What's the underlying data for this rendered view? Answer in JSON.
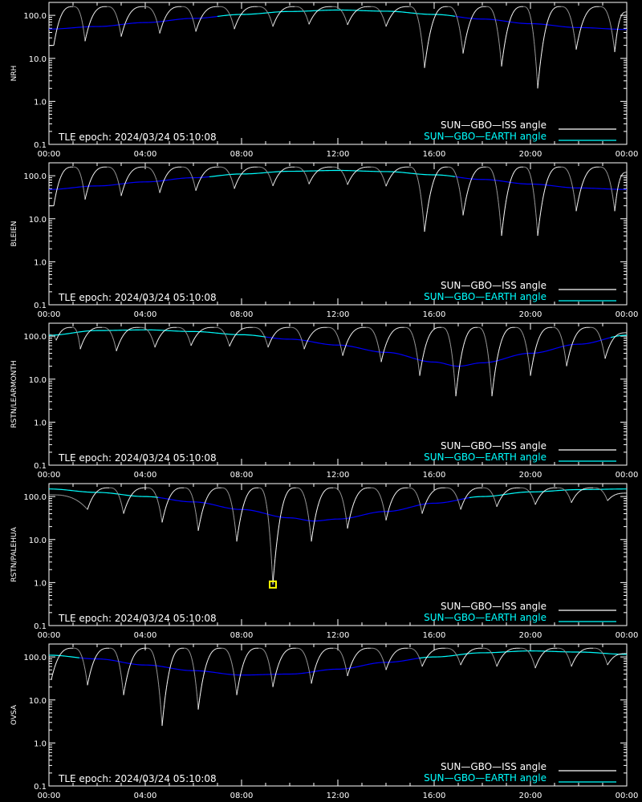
{
  "colors": {
    "background": "#000000",
    "axes": "#ffffff",
    "iss": "#ffffff",
    "earth_above": "#00ffff",
    "earth_below": "#0000ff",
    "marker": "#ffff00"
  },
  "legend": {
    "iss": "SUN—GBO—ISS angle",
    "earth": "SUN—GBO—EARTH angle"
  },
  "epoch": "TLE epoch: 2024/03/24 05:10:08",
  "x_ticks": [
    "00:00",
    "04:00",
    "08:00",
    "12:00",
    "16:00",
    "20:00",
    "00:00"
  ],
  "y_ticks": [
    "0.1",
    "1.0",
    "10.0",
    "100.0"
  ],
  "chart_data": [
    {
      "type": "line",
      "ylabel": "NRH",
      "ylim": [
        0.1,
        200
      ],
      "yscale": "log",
      "xlim_hours": [
        0,
        24
      ],
      "x_ticks": [
        "00:00",
        "04:00",
        "08:00",
        "12:00",
        "16:00",
        "20:00",
        "00:00"
      ],
      "legend": [
        "SUN—GBO—ISS angle",
        "SUN—GBO—EARTH angle"
      ],
      "series": [
        {
          "name": "SUN—GBO—EARTH angle",
          "x": [
            0,
            2,
            4,
            6,
            8,
            10,
            12,
            14,
            16,
            18,
            20,
            22,
            24
          ],
          "y": [
            48,
            55,
            68,
            85,
            105,
            123,
            133,
            125,
            105,
            82,
            64,
            52,
            47
          ]
        },
        {
          "name": "SUN—GBO—ISS angle",
          "peak": 160,
          "minima": [
            {
              "t": 0.2,
              "v": 20
            },
            {
              "t": 1.5,
              "v": 25
            },
            {
              "t": 3.0,
              "v": 32
            },
            {
              "t": 4.6,
              "v": 38
            },
            {
              "t": 6.1,
              "v": 42
            },
            {
              "t": 7.7,
              "v": 48
            },
            {
              "t": 9.3,
              "v": 55
            },
            {
              "t": 10.8,
              "v": 62
            },
            {
              "t": 12.4,
              "v": 60
            },
            {
              "t": 14.0,
              "v": 55
            },
            {
              "t": 15.6,
              "v": 6
            },
            {
              "t": 17.2,
              "v": 13
            },
            {
              "t": 18.8,
              "v": 6.5
            },
            {
              "t": 20.3,
              "v": 2
            },
            {
              "t": 21.9,
              "v": 16
            },
            {
              "t": 23.5,
              "v": 14
            }
          ]
        }
      ],
      "annotation": "TLE epoch: 2024/03/24 05:10:08",
      "marker": null
    },
    {
      "type": "line",
      "ylabel": "BLEIEN",
      "ylim": [
        0.1,
        200
      ],
      "yscale": "log",
      "xlim_hours": [
        0,
        24
      ],
      "x_ticks": [
        "00:00",
        "04:00",
        "08:00",
        "12:00",
        "16:00",
        "20:00",
        "00:00"
      ],
      "legend": [
        "SUN—GBO—ISS angle",
        "SUN—GBO—EARTH angle"
      ],
      "series": [
        {
          "name": "SUN—GBO—EARTH angle",
          "x": [
            0,
            2,
            4,
            6,
            8,
            10,
            12,
            14,
            16,
            18,
            20,
            22,
            24
          ],
          "y": [
            48,
            58,
            72,
            90,
            110,
            127,
            133,
            125,
            105,
            82,
            64,
            52,
            48
          ]
        },
        {
          "name": "SUN—GBO—ISS angle",
          "peak": 160,
          "minima": [
            {
              "t": 0.2,
              "v": 20
            },
            {
              "t": 1.5,
              "v": 28
            },
            {
              "t": 3.0,
              "v": 34
            },
            {
              "t": 4.6,
              "v": 40
            },
            {
              "t": 6.1,
              "v": 45
            },
            {
              "t": 7.7,
              "v": 50
            },
            {
              "t": 9.3,
              "v": 58
            },
            {
              "t": 10.8,
              "v": 64
            },
            {
              "t": 12.4,
              "v": 62
            },
            {
              "t": 14.0,
              "v": 57
            },
            {
              "t": 15.6,
              "v": 5
            },
            {
              "t": 17.2,
              "v": 12
            },
            {
              "t": 18.8,
              "v": 4
            },
            {
              "t": 20.3,
              "v": 4
            },
            {
              "t": 21.9,
              "v": 15
            },
            {
              "t": 23.5,
              "v": 15
            }
          ]
        }
      ],
      "annotation": "TLE epoch: 2024/03/24 05:10:08",
      "marker": null
    },
    {
      "type": "line",
      "ylabel": "RSTN/LEARMONTH",
      "ylim": [
        0.1,
        200
      ],
      "yscale": "log",
      "xlim_hours": [
        0,
        24
      ],
      "x_ticks": [
        "00:00",
        "04:00",
        "08:00",
        "12:00",
        "16:00",
        "20:00",
        "00:00"
      ],
      "legend": [
        "SUN—GBO—ISS angle",
        "SUN—GBO—EARTH angle"
      ],
      "series": [
        {
          "name": "SUN—GBO—EARTH angle",
          "x": [
            0,
            2,
            4,
            6,
            8,
            10,
            12,
            14,
            16,
            17,
            18,
            20,
            22,
            24
          ],
          "y": [
            105,
            135,
            140,
            128,
            108,
            85,
            62,
            42,
            25,
            20,
            24,
            40,
            65,
            105
          ]
        },
        {
          "name": "SUN—GBO—ISS angle",
          "peak": 160,
          "minima": [
            {
              "t": 0.3,
              "v": 80
            },
            {
              "t": 1.3,
              "v": 50
            },
            {
              "t": 2.8,
              "v": 45
            },
            {
              "t": 4.4,
              "v": 55
            },
            {
              "t": 5.9,
              "v": 60
            },
            {
              "t": 7.5,
              "v": 58
            },
            {
              "t": 9.1,
              "v": 55
            },
            {
              "t": 10.6,
              "v": 50
            },
            {
              "t": 12.2,
              "v": 35
            },
            {
              "t": 13.8,
              "v": 25
            },
            {
              "t": 15.4,
              "v": 12
            },
            {
              "t": 16.9,
              "v": 4
            },
            {
              "t": 18.4,
              "v": 4
            },
            {
              "t": 20.0,
              "v": 12
            },
            {
              "t": 21.5,
              "v": 20
            },
            {
              "t": 23.1,
              "v": 30
            }
          ]
        }
      ],
      "annotation": "TLE epoch: 2024/03/24 05:10:08",
      "marker": null
    },
    {
      "type": "line",
      "ylabel": "RSTN/PALEHUA",
      "ylim": [
        0.1,
        200
      ],
      "yscale": "log",
      "xlim_hours": [
        0,
        24
      ],
      "x_ticks": [
        "00:00",
        "04:00",
        "08:00",
        "12:00",
        "16:00",
        "20:00",
        "00:00"
      ],
      "legend": [
        "SUN—GBO—ISS angle",
        "SUN—GBO—EARTH angle"
      ],
      "series": [
        {
          "name": "SUN—GBO—EARTH angle",
          "x": [
            0,
            2,
            4,
            6,
            8,
            10,
            11,
            12,
            14,
            16,
            18,
            20,
            22,
            24
          ],
          "y": [
            150,
            125,
            100,
            75,
            50,
            32,
            27,
            30,
            45,
            70,
            100,
            128,
            145,
            150
          ]
        },
        {
          "name": "SUN—GBO—ISS angle",
          "peak": 160,
          "minima": [
            {
              "t": 1.6,
              "v": 50
            },
            {
              "t": 3.1,
              "v": 40
            },
            {
              "t": 4.7,
              "v": 25
            },
            {
              "t": 6.2,
              "v": 16
            },
            {
              "t": 7.8,
              "v": 9
            },
            {
              "t": 9.3,
              "v": 0.9
            },
            {
              "t": 10.9,
              "v": 9
            },
            {
              "t": 12.4,
              "v": 18
            },
            {
              "t": 14.0,
              "v": 28
            },
            {
              "t": 15.5,
              "v": 40
            },
            {
              "t": 17.1,
              "v": 50
            },
            {
              "t": 18.6,
              "v": 58
            },
            {
              "t": 20.2,
              "v": 65
            },
            {
              "t": 21.7,
              "v": 72
            },
            {
              "t": 23.2,
              "v": 80
            }
          ]
        }
      ],
      "annotation": "TLE epoch: 2024/03/24 05:10:08",
      "marker": {
        "t": 9.3,
        "v": 0.9
      }
    },
    {
      "type": "line",
      "ylabel": "OVSA",
      "ylim": [
        0.1,
        200
      ],
      "yscale": "log",
      "xlim_hours": [
        0,
        24
      ],
      "x_ticks": [
        "00:00",
        "04:00",
        "08:00",
        "12:00",
        "16:00",
        "20:00",
        "00:00"
      ],
      "legend": [
        "SUN—GBO—ISS angle",
        "SUN—GBO—EARTH angle"
      ],
      "series": [
        {
          "name": "SUN—GBO—EARTH angle",
          "x": [
            0,
            2,
            4,
            6,
            8,
            10,
            12,
            14,
            16,
            18,
            20,
            22,
            24
          ],
          "y": [
            110,
            90,
            65,
            48,
            38,
            40,
            52,
            75,
            100,
            125,
            138,
            130,
            115
          ]
        },
        {
          "name": "SUN—GBO—ISS angle",
          "peak": 160,
          "minima": [
            {
              "t": 0.1,
              "v": 30
            },
            {
              "t": 1.6,
              "v": 22
            },
            {
              "t": 3.1,
              "v": 13
            },
            {
              "t": 4.7,
              "v": 2.5
            },
            {
              "t": 6.2,
              "v": 6
            },
            {
              "t": 7.8,
              "v": 13
            },
            {
              "t": 9.3,
              "v": 20
            },
            {
              "t": 10.9,
              "v": 24
            },
            {
              "t": 12.4,
              "v": 36
            },
            {
              "t": 14.0,
              "v": 50
            },
            {
              "t": 15.5,
              "v": 60
            },
            {
              "t": 17.1,
              "v": 65
            },
            {
              "t": 18.6,
              "v": 60
            },
            {
              "t": 20.2,
              "v": 55
            },
            {
              "t": 21.7,
              "v": 60
            },
            {
              "t": 23.2,
              "v": 65
            }
          ]
        }
      ],
      "annotation": "TLE epoch: 2024/03/24 05:10:08",
      "marker": null
    }
  ]
}
